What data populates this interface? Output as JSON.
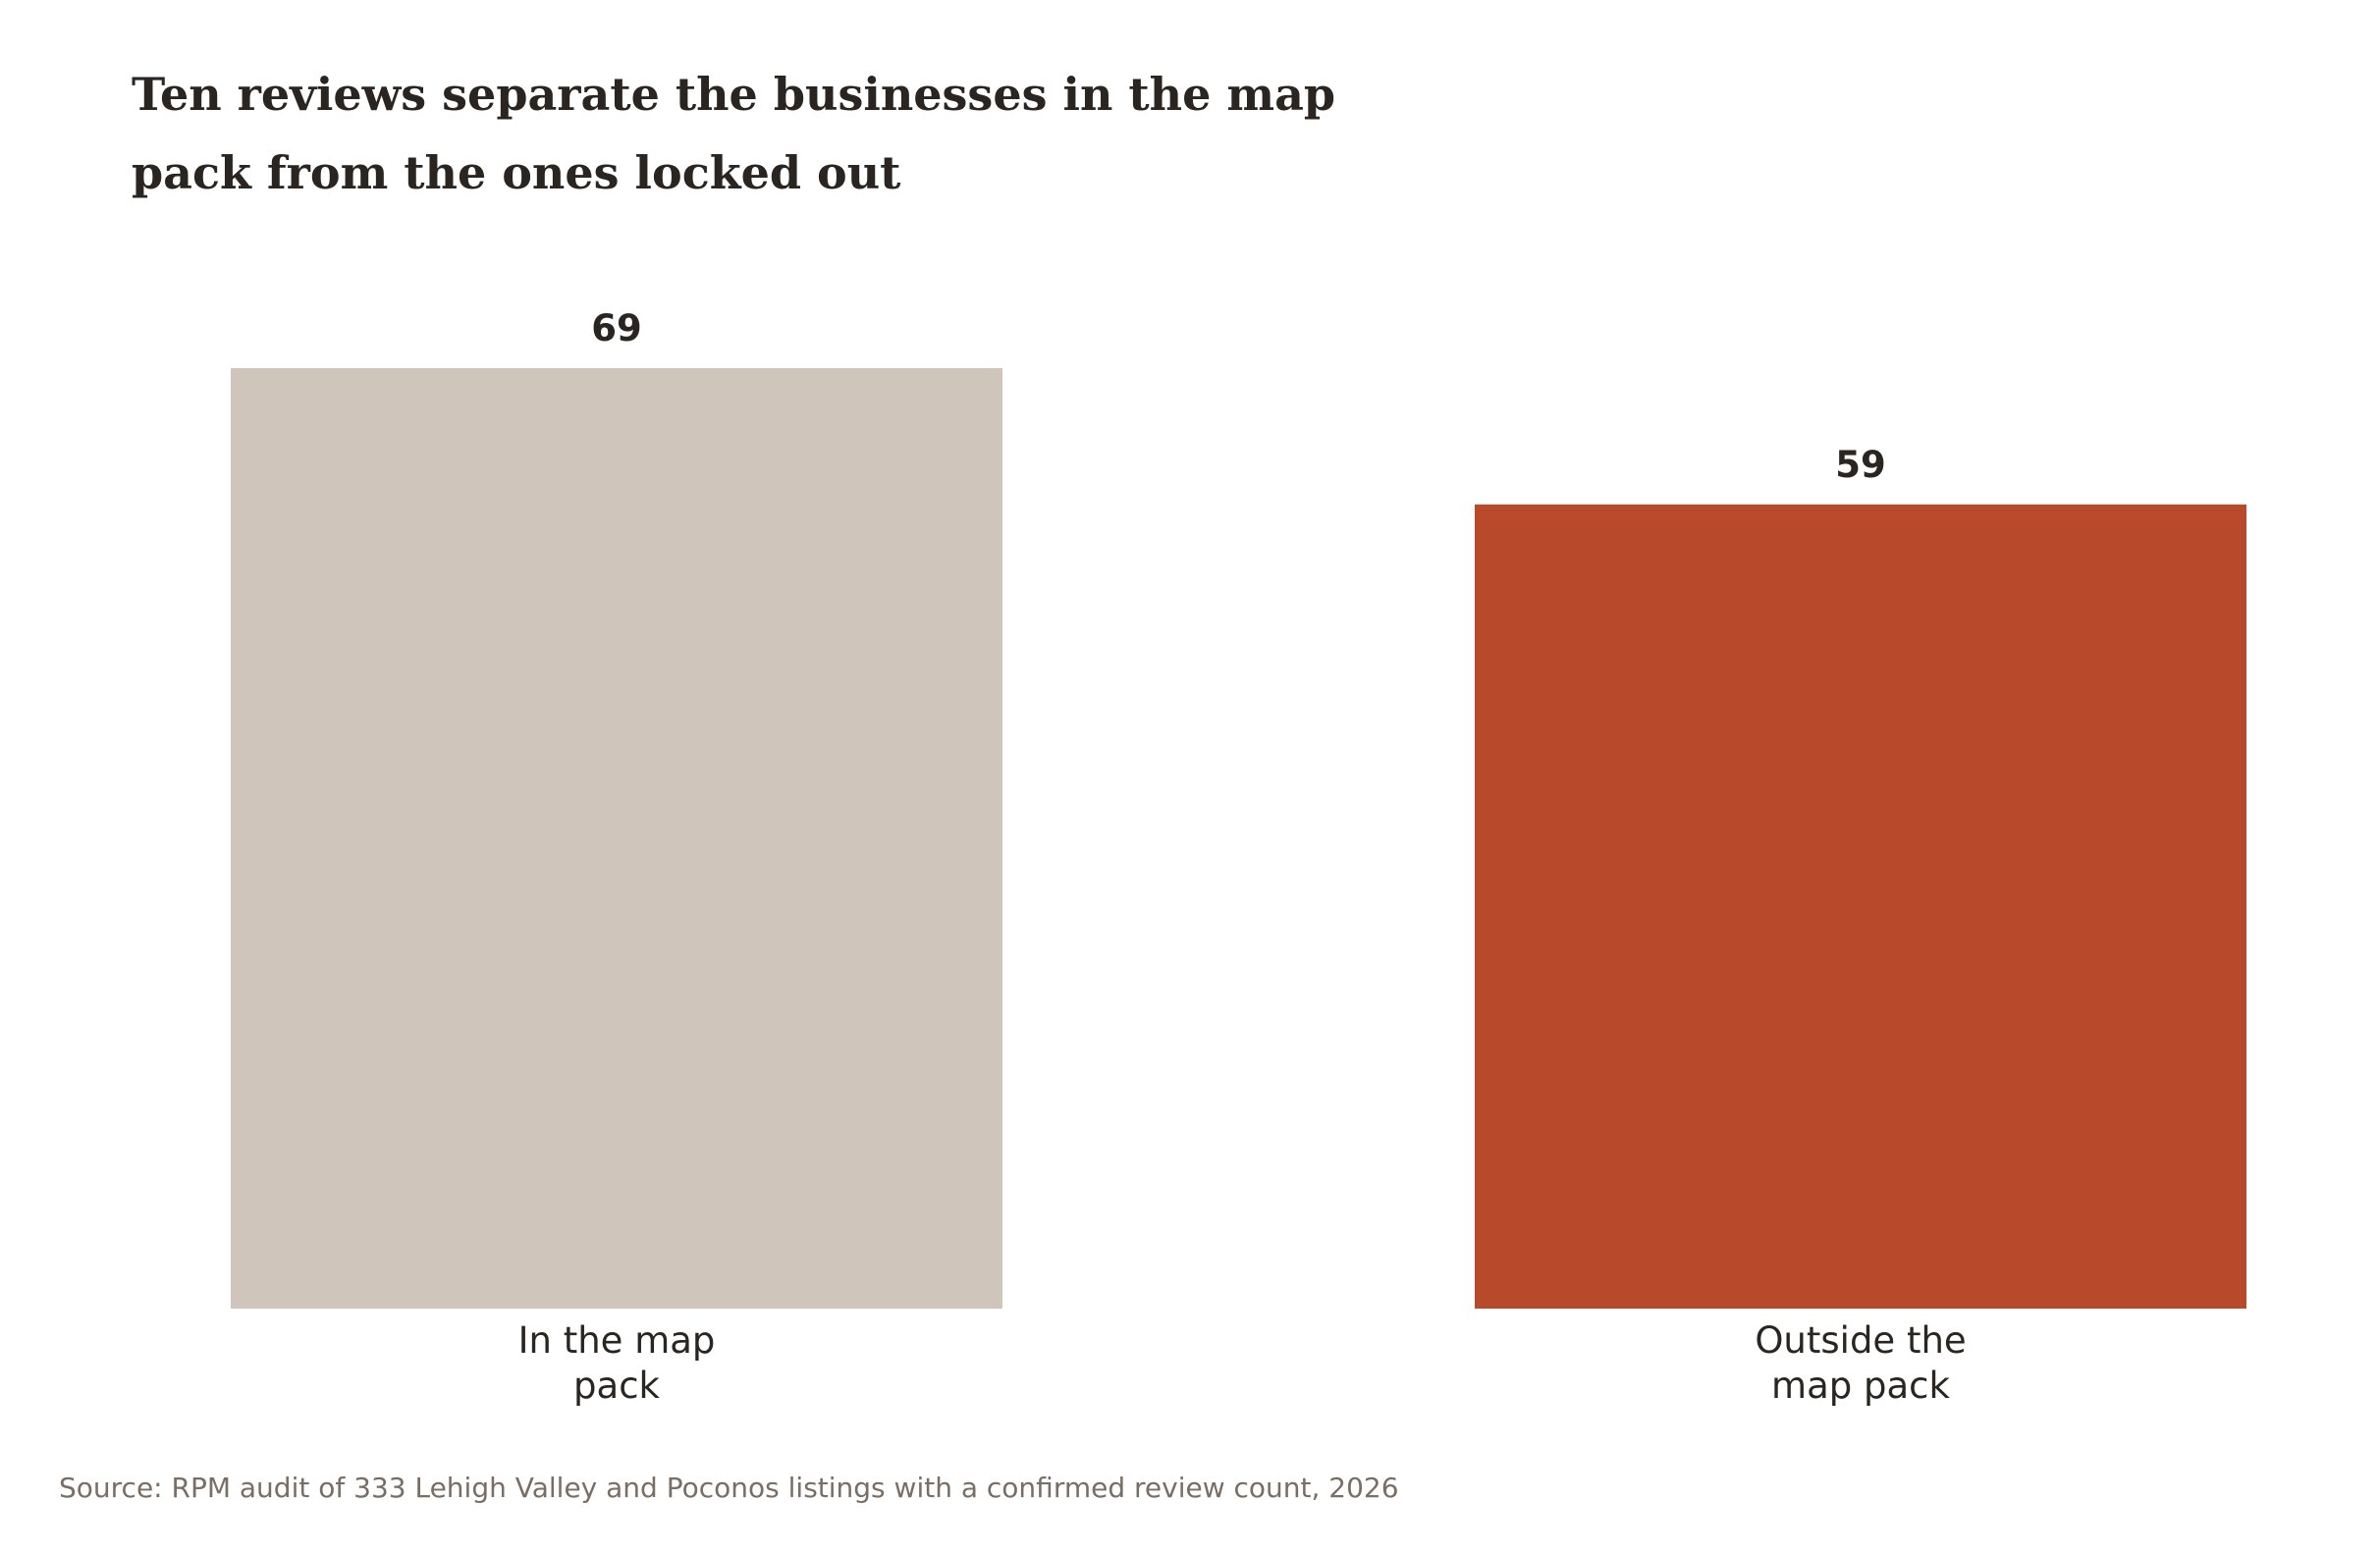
{
  "chart_data": {
    "type": "bar",
    "title": "Ten reviews separate the businesses in the map pack from the ones locked out",
    "title_lines": [
      "Ten reviews separate the businesses in the map",
      "pack from the ones locked out"
    ],
    "categories": [
      "In the map pack",
      "Outside the map pack"
    ],
    "category_lines": [
      [
        "In the map",
        "pack"
      ],
      [
        "Outside the",
        "map pack"
      ]
    ],
    "values": [
      69,
      59
    ],
    "value_labels": [
      "69",
      "59"
    ],
    "colors": [
      "#d0c5ba",
      "#b8492a"
    ],
    "ylim": [
      0,
      69
    ],
    "grid": false,
    "legend": "none",
    "source": "Source: RPM audit of 333 Lehigh Valley and Poconos listings with a confirmed review count, 2026"
  }
}
